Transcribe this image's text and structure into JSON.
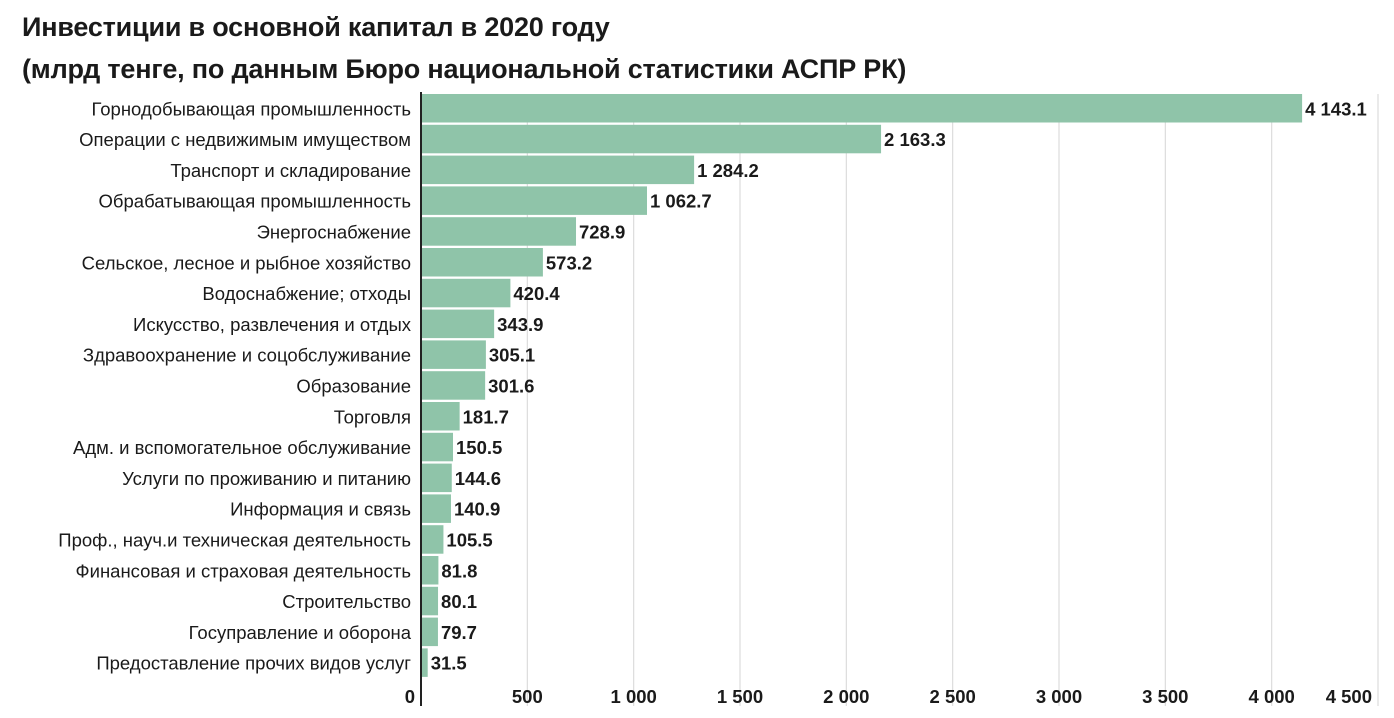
{
  "chart_data": {
    "type": "bar",
    "orientation": "horizontal",
    "title": "Инвестиции в основной капитал в 2020 году",
    "subtitle": "(млрд тенге, по данным Бюро национальной статистики АСПР РК)",
    "categories": [
      "Горнодобывающая промышленность",
      "Операции с недвижимым имуществом",
      "Транспорт и складирование",
      "Обрабатывающая промышленность",
      "Энергоснабжение",
      "Сельское, лесное и рыбное хозяйство",
      "Водоснабжение; отходы",
      "Искусство, развлечения и отдых",
      "Здравоохранение и соцобслуживание",
      "Образование",
      "Торговля",
      "Адм. и вспомогательное обслуживание",
      "Услуги по проживанию и питанию",
      "Информация и связь",
      "Проф., науч.и техническая деятельность",
      "Финансовая и страховая деятельность",
      "Строительство",
      "Госуправление и оборона",
      "Предоставление прочих видов услуг"
    ],
    "values": [
      4143.1,
      2163.3,
      1284.2,
      1062.7,
      728.9,
      573.2,
      420.4,
      343.9,
      305.1,
      301.6,
      181.7,
      150.5,
      144.6,
      140.9,
      105.5,
      81.8,
      80.1,
      79.7,
      31.5
    ],
    "value_labels": [
      "4 143.1",
      "2 163.3",
      "1 284.2",
      "1 062.7",
      "728.9",
      "573.2",
      "420.4",
      "343.9",
      "305.1",
      "301.6",
      "181.7",
      "150.5",
      "144.6",
      "140.9",
      "105.5",
      "81.8",
      "80.1",
      "79.7",
      "31.5"
    ],
    "xlim": [
      0,
      4500
    ],
    "xticks": [
      0,
      500,
      1000,
      1500,
      2000,
      2500,
      3000,
      3500,
      4000,
      4500
    ],
    "xtick_labels": [
      "0",
      "500",
      "1 000",
      "1 500",
      "2 000",
      "2 500",
      "3 000",
      "3 500",
      "4 000",
      "4 500"
    ],
    "grid": true,
    "bar_color": "#8fc4a9",
    "grid_color": "#dcdcdc",
    "axis_color": "#222222"
  }
}
